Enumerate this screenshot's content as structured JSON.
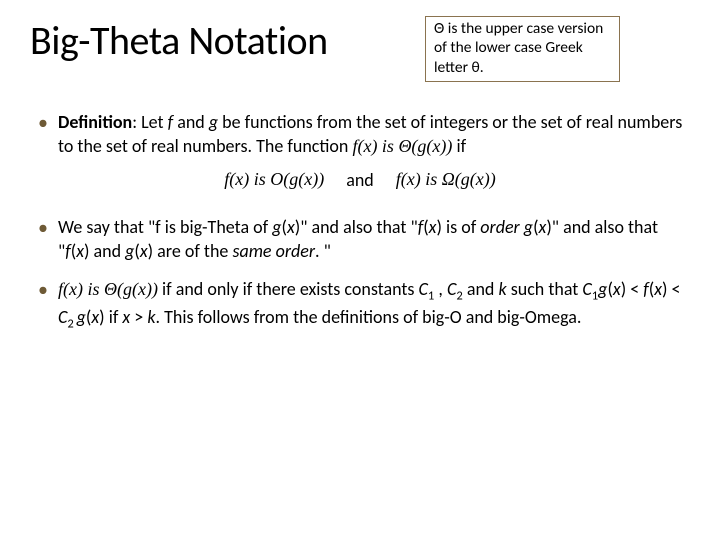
{
  "header": {
    "title": "Big-Theta Notation",
    "note": "Θ is the upper case version of the lower case Greek letter θ."
  },
  "bullets": {
    "b1_prefix_bold": "Definition",
    "b1_rest_a": ": Let ",
    "b1_f": "f",
    "b1_rest_b": " and ",
    "b1_g": "g",
    "b1_rest_c": " be functions from the set of integers or the set of real numbers to the set of real numbers. The function ",
    "b1_fn": "f(x)  is  Θ(g(x))",
    "b1_if": " if",
    "and_left": "f(x)  is  O(g(x))",
    "and_word": "and",
    "and_right": "f(x)  is  Ω(g(x))",
    "b2_a": " We say that \"f is big-Theta of ",
    "b2_gx": "g",
    "b2_b": "(",
    "b2_x": "x",
    "b2_c": ")\" and also that \"",
    "b2_fx_i": "f",
    "b2_d": "(",
    "b2_x2": "x",
    "b2_e": ") is of ",
    "b2_order1": "order g",
    "b2_f": "(",
    "b2_x3": "x",
    "b2_g": ")\"   and also that \"",
    "b2_fx2": "f",
    "b2_h": "(",
    "b2_x4": "x",
    "b2_i": ") and ",
    "b2_gx2": "g",
    "b2_j": "(",
    "b2_x5": "x",
    "b2_k": ") are of the ",
    "b2_same": "same order",
    "b2_l": ". \"",
    "b3_fn": "f(x)  is  Θ(g(x))",
    "b3_a": " if and only if there exists constants ",
    "b3_C1": "C",
    "b3_1": "1",
    "b3_comma": " , ",
    "b3_C2": "C",
    "b3_2": "2",
    "b3_b": " and ",
    "b3_k": "k",
    "b3_c": " such that ",
    "b3_C1b": "C",
    "b3_1b": "1",
    "b3_gx": "g",
    "b3_d": "(",
    "b3_x1": "x",
    "b3_e": ") < ",
    "b3_fx": "f",
    "b3_f": "(",
    "b3_x2": "x",
    "b3_g": ") < ",
    "b3_C2b": "C",
    "b3_2b": "2 ",
    "b3_gx2": "g",
    "b3_h": "(",
    "b3_x3": "x",
    "b3_i": ")  if ",
    "b3_x4": "x",
    "b3_j": " > ",
    "b3_k2": "k",
    "b3_k3": ". This follows from the definitions of big-O and big-Omega."
  },
  "colors": {
    "bullet": "#6e5a36",
    "box_border": "#8a734f",
    "text": "#000000",
    "bg": "#ffffff"
  }
}
